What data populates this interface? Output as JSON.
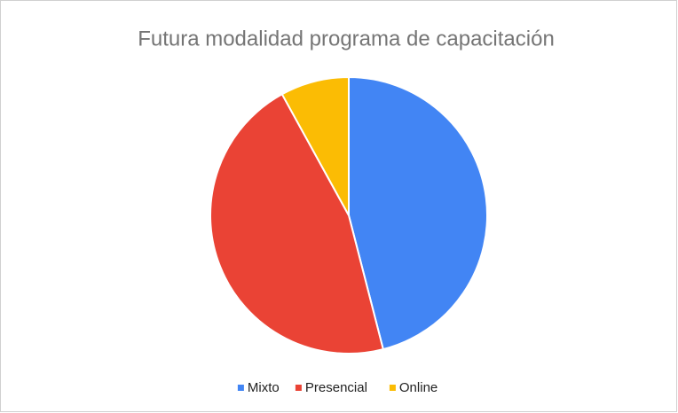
{
  "chart_data": {
    "type": "pie",
    "title": "Futura modalidad programa de capacitación",
    "categories": [
      "Mixto",
      "Presencial",
      "Online"
    ],
    "values": [
      46,
      46,
      8
    ],
    "colors": [
      "#4285f4",
      "#ea4335",
      "#fbbc04"
    ],
    "legend": "bottom"
  }
}
